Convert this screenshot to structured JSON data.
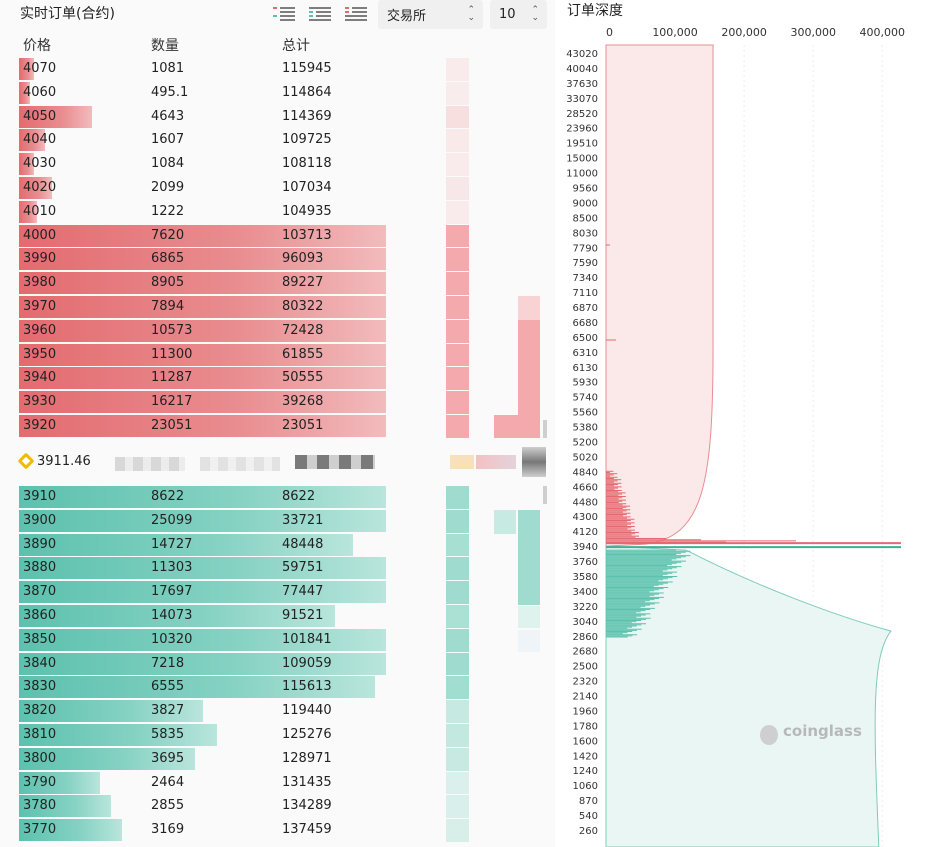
{
  "header": {
    "title": "实时订单(合约)",
    "exchange_select": "交易所",
    "depth_select": "10"
  },
  "columns": {
    "price": "价格",
    "qty": "数量",
    "total": "总计"
  },
  "asks": [
    {
      "price": "4070",
      "qty": "1081",
      "total": "115945",
      "depth": 0.04
    },
    {
      "price": "4060",
      "qty": "495.1",
      "total": "114864",
      "depth": 0.02
    },
    {
      "price": "4050",
      "qty": "4643",
      "total": "114369",
      "depth": 0.2
    },
    {
      "price": "4040",
      "qty": "1607",
      "total": "109725",
      "depth": 0.07
    },
    {
      "price": "4030",
      "qty": "1084",
      "total": "108118",
      "depth": 0.04
    },
    {
      "price": "4020",
      "qty": "2099",
      "total": "107034",
      "depth": 0.09
    },
    {
      "price": "4010",
      "qty": "1222",
      "total": "104935",
      "depth": 0.05
    },
    {
      "price": "4000",
      "qty": "7620",
      "total": "103713",
      "depth": 1
    },
    {
      "price": "3990",
      "qty": "6865",
      "total": "96093",
      "depth": 1
    },
    {
      "price": "3980",
      "qty": "8905",
      "total": "89227",
      "depth": 1
    },
    {
      "price": "3970",
      "qty": "7894",
      "total": "80322",
      "depth": 1
    },
    {
      "price": "3960",
      "qty": "10573",
      "total": "72428",
      "depth": 1
    },
    {
      "price": "3950",
      "qty": "11300",
      "total": "61855",
      "depth": 1
    },
    {
      "price": "3940",
      "qty": "11287",
      "total": "50555",
      "depth": 1
    },
    {
      "price": "3930",
      "qty": "16217",
      "total": "39268",
      "depth": 1
    },
    {
      "price": "3920",
      "qty": "23051",
      "total": "23051",
      "depth": 1
    }
  ],
  "mid": {
    "price": "3911.46"
  },
  "bids": [
    {
      "price": "3910",
      "qty": "8622",
      "total": "8622",
      "depth": 1
    },
    {
      "price": "3900",
      "qty": "25099",
      "total": "33721",
      "depth": 1
    },
    {
      "price": "3890",
      "qty": "14727",
      "total": "48448",
      "depth": 0.91
    },
    {
      "price": "3880",
      "qty": "11303",
      "total": "59751",
      "depth": 1
    },
    {
      "price": "3870",
      "qty": "17697",
      "total": "77447",
      "depth": 1
    },
    {
      "price": "3860",
      "qty": "14073",
      "total": "91521",
      "depth": 0.86
    },
    {
      "price": "3850",
      "qty": "10320",
      "total": "101841",
      "depth": 1
    },
    {
      "price": "3840",
      "qty": "7218",
      "total": "109059",
      "depth": 1
    },
    {
      "price": "3830",
      "qty": "6555",
      "total": "115613",
      "depth": 0.97
    },
    {
      "price": "3820",
      "qty": "3827",
      "total": "119440",
      "depth": 0.5
    },
    {
      "price": "3810",
      "qty": "5835",
      "total": "125276",
      "depth": 0.54
    },
    {
      "price": "3800",
      "qty": "3695",
      "total": "128971",
      "depth": 0.48
    },
    {
      "price": "3790",
      "qty": "2464",
      "total": "131435",
      "depth": 0.22
    },
    {
      "price": "3780",
      "qty": "2855",
      "total": "134289",
      "depth": 0.25
    },
    {
      "price": "3770",
      "qty": "3169",
      "total": "137459",
      "depth": 0.28
    }
  ],
  "depth_chart": {
    "title": "订单深度",
    "x_ticks": [
      "0",
      "100,000",
      "200,000",
      "300,000",
      "400,000"
    ],
    "x_max": 430000,
    "y_labels": [
      "43020",
      "40040",
      "37630",
      "33070",
      "28520",
      "23960",
      "19510",
      "15000",
      "11000",
      "9560",
      "9000",
      "8500",
      "8030",
      "7790",
      "7590",
      "7340",
      "7110",
      "6870",
      "6680",
      "6500",
      "6310",
      "6130",
      "5930",
      "5740",
      "5560",
      "5380",
      "5200",
      "5020",
      "4840",
      "4660",
      "4480",
      "4300",
      "4120",
      "3940",
      "3760",
      "3580",
      "3400",
      "3220",
      "3040",
      "2860",
      "2680",
      "2500",
      "2320",
      "2140",
      "1960",
      "1780",
      "1600",
      "1420",
      "1240",
      "1060",
      "870",
      "540",
      "260"
    ],
    "mid_level": 3940,
    "ask_cum_max": 155000,
    "bid_cum_max": 395000,
    "watermark": "coinglass"
  },
  "colors": {
    "ask": "#e36b6f",
    "bid": "#5cc1ae",
    "mid_icon": "#f0b90b"
  }
}
